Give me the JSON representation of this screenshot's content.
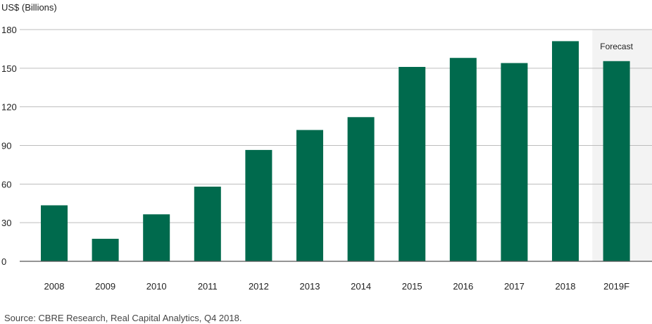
{
  "chart_data": {
    "type": "bar",
    "ylabel": "US$ (Billions)",
    "categories": [
      "2008",
      "2009",
      "2010",
      "2011",
      "2012",
      "2013",
      "2014",
      "2015",
      "2016",
      "2017",
      "2018",
      "2019F"
    ],
    "values": [
      43.5,
      17.5,
      36.5,
      58,
      86.5,
      102,
      112,
      151,
      158,
      154,
      171,
      155.5
    ],
    "ylim": [
      0,
      180
    ],
    "yticks": [
      0,
      30,
      60,
      90,
      120,
      150,
      180
    ],
    "grid": true,
    "bar_color": "#006a4d",
    "forecast": {
      "label": "Forecast",
      "categories": [
        "2019F"
      ],
      "shade_color": "#f3f3f3"
    }
  },
  "source": "Source: CBRE Research, Real Capital Analytics, Q4 2018."
}
